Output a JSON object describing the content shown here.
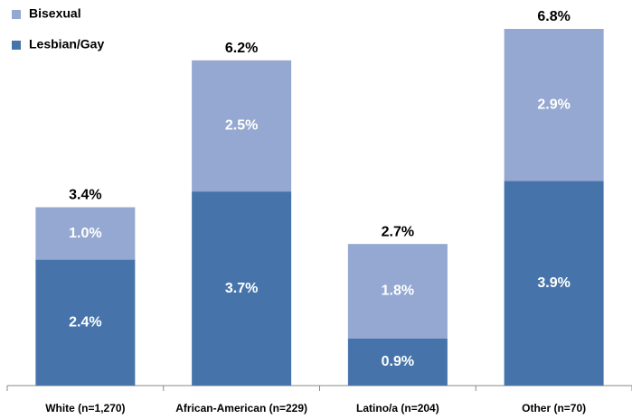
{
  "chart_data": {
    "type": "stacked_bar",
    "categories": [
      "White (n=1,270)",
      "African-American (n=229)",
      "Latino/a (n=204)",
      "Other (n=70)"
    ],
    "series": [
      {
        "name": "Lesbian/Gay",
        "color": "#4674aa",
        "values": [
          2.4,
          3.7,
          0.9,
          3.9
        ],
        "value_labels": [
          "2.4%",
          "3.7%",
          "0.9%",
          "3.9%"
        ]
      },
      {
        "name": "Bisexual",
        "color": "#94a8d1",
        "values": [
          1.0,
          2.5,
          1.8,
          2.9
        ],
        "value_labels": [
          "1.0%",
          "2.5%",
          "1.8%",
          "2.9%"
        ]
      }
    ],
    "totals": [
      3.4,
      6.2,
      2.7,
      6.8
    ],
    "total_labels": [
      "3.4%",
      "6.2%",
      "2.7%",
      "6.8%"
    ]
  }
}
